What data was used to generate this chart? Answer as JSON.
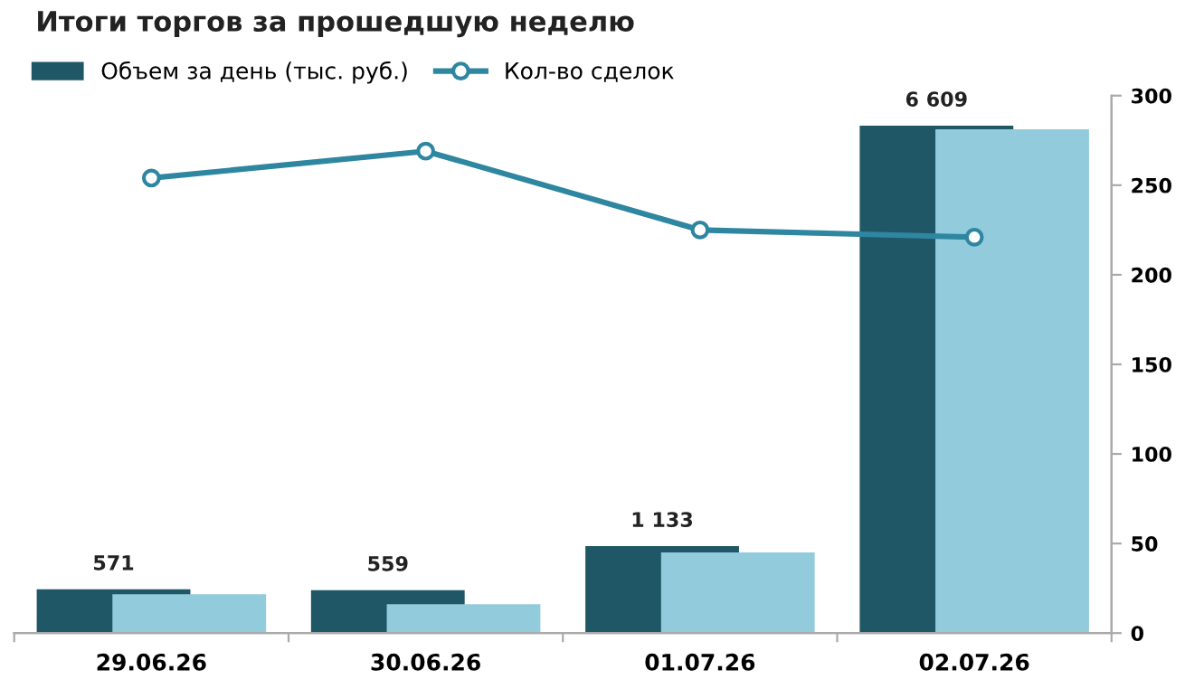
{
  "chart_data": {
    "type": "bar",
    "title": "Итоги торгов за прошедшую неделю",
    "categories": [
      "29.06.26",
      "30.06.26",
      "01.07.26",
      "02.07.26"
    ],
    "series": [
      {
        "name": "Объем за день (тыс. руб.)",
        "color": "#1f5766",
        "values": [
          571,
          559,
          1133,
          6609
        ],
        "value_labels": [
          "571",
          "559",
          "1 133",
          "6 609"
        ]
      },
      {
        "color": "#92cbdc",
        "values": [
          507,
          376,
          1051,
          6561
        ]
      },
      {
        "name": "Кол-во сделок",
        "type": "line",
        "axis": "y2",
        "color": "#2e86a0",
        "marker": "circle",
        "values": [
          254,
          269,
          225,
          221
        ]
      }
    ],
    "ylim": [
      0,
      7000
    ],
    "y2lim": [
      0,
      300
    ],
    "y2ticks": [
      0,
      50,
      100,
      150,
      200,
      250,
      300
    ],
    "grid": false,
    "legend": "top left"
  }
}
